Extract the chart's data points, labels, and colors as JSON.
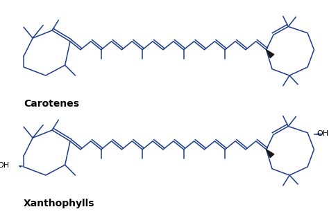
{
  "bg_color": "#ffffff",
  "line_color": "#1a3a8a",
  "text_color": "#000000",
  "label1": "Carotenes",
  "label2": "Xanthophylls",
  "label_fontsize": 10,
  "label_fontweight": "bold",
  "oh_fontsize": 8
}
